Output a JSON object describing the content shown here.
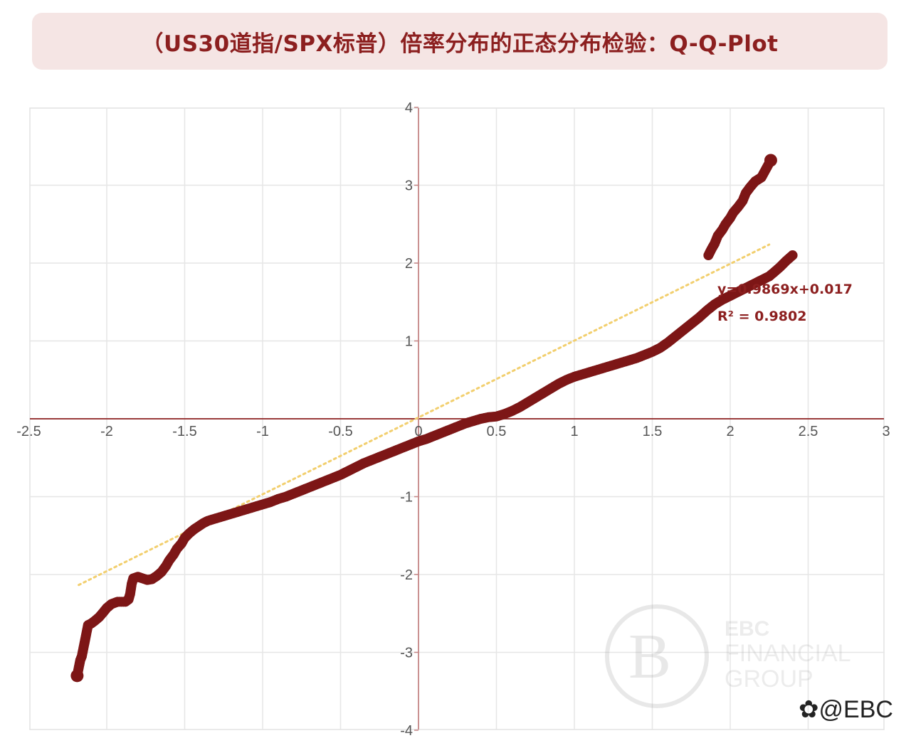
{
  "title": "（US30道指/SPX标普）倍率分布的正态分布检验：Q-Q-Plot",
  "chart_data": {
    "type": "scatter",
    "title": "（US30道指/SPX标普）倍率分布的正态分布检验：Q-Q-Plot",
    "xlim": [
      -2.5,
      3
    ],
    "ylim": [
      -4,
      4
    ],
    "x_ticks": [
      -2.5,
      -2,
      -1.5,
      -1,
      -0.5,
      0,
      0.5,
      1,
      1.5,
      2,
      2.5,
      3
    ],
    "x_tick_labels": [
      "-2.5",
      "-2",
      "-1.5",
      "-1",
      "-0.5",
      "0",
      "0.5",
      "1",
      "1.5",
      "2",
      "2.5",
      "3"
    ],
    "y_ticks": [
      -4,
      -3,
      -2,
      -1,
      1,
      2,
      3,
      4
    ],
    "y_tick_labels": [
      "-4",
      "-3",
      "-2",
      "-1",
      "1",
      "2",
      "3",
      "4"
    ],
    "grid": true,
    "point_color": "#7d1616",
    "trend_color": "#f2cf6e",
    "axis_color": "#8c1f1f",
    "series": [
      {
        "points": [
          [
            -2.19,
            -3.3
          ],
          [
            -2.17,
            -3.1
          ],
          [
            -2.16,
            -3.05
          ],
          [
            -2.15,
            -2.95
          ],
          [
            -2.14,
            -2.85
          ],
          [
            -2.13,
            -2.75
          ],
          [
            -2.12,
            -2.65
          ],
          [
            -2.1,
            -2.63
          ],
          [
            -2.08,
            -2.6
          ],
          [
            -2.05,
            -2.55
          ],
          [
            -2.02,
            -2.48
          ],
          [
            -2.0,
            -2.43
          ],
          [
            -1.97,
            -2.38
          ],
          [
            -1.93,
            -2.35
          ],
          [
            -1.88,
            -2.35
          ],
          [
            -1.86,
            -2.32
          ],
          [
            -1.85,
            -2.25
          ],
          [
            -1.84,
            -2.12
          ],
          [
            -1.83,
            -2.05
          ],
          [
            -1.8,
            -2.03
          ],
          [
            -1.77,
            -2.05
          ],
          [
            -1.74,
            -2.07
          ],
          [
            -1.71,
            -2.06
          ],
          [
            -1.68,
            -2.02
          ],
          [
            -1.65,
            -1.97
          ],
          [
            -1.62,
            -1.89
          ],
          [
            -1.6,
            -1.82
          ],
          [
            -1.57,
            -1.74
          ],
          [
            -1.55,
            -1.67
          ],
          [
            -1.52,
            -1.6
          ],
          [
            -1.5,
            -1.53
          ],
          [
            -1.47,
            -1.47
          ],
          [
            -1.44,
            -1.42
          ],
          [
            -1.41,
            -1.38
          ],
          [
            -1.38,
            -1.34
          ],
          [
            -1.35,
            -1.31
          ],
          [
            -1.3,
            -1.28
          ],
          [
            -1.25,
            -1.25
          ],
          [
            -1.2,
            -1.22
          ],
          [
            -1.15,
            -1.19
          ],
          [
            -1.1,
            -1.16
          ],
          [
            -1.05,
            -1.13
          ],
          [
            -1.0,
            -1.1
          ],
          [
            -0.95,
            -1.07
          ],
          [
            -0.9,
            -1.03
          ],
          [
            -0.85,
            -1.0
          ],
          [
            -0.8,
            -0.96
          ],
          [
            -0.75,
            -0.92
          ],
          [
            -0.7,
            -0.88
          ],
          [
            -0.65,
            -0.84
          ],
          [
            -0.6,
            -0.8
          ],
          [
            -0.55,
            -0.76
          ],
          [
            -0.5,
            -0.72
          ],
          [
            -0.45,
            -0.67
          ],
          [
            -0.4,
            -0.62
          ],
          [
            -0.35,
            -0.57
          ],
          [
            -0.3,
            -0.53
          ],
          [
            -0.25,
            -0.49
          ],
          [
            -0.2,
            -0.45
          ],
          [
            -0.15,
            -0.41
          ],
          [
            -0.1,
            -0.37
          ],
          [
            -0.05,
            -0.33
          ],
          [
            0.0,
            -0.29
          ],
          [
            0.05,
            -0.26
          ],
          [
            0.1,
            -0.22
          ],
          [
            0.15,
            -0.18
          ],
          [
            0.2,
            -0.14
          ],
          [
            0.25,
            -0.1
          ],
          [
            0.3,
            -0.06
          ],
          [
            0.35,
            -0.03
          ],
          [
            0.4,
            0.0
          ],
          [
            0.45,
            0.02
          ],
          [
            0.5,
            0.03
          ],
          [
            0.55,
            0.06
          ],
          [
            0.6,
            0.1
          ],
          [
            0.65,
            0.15
          ],
          [
            0.7,
            0.21
          ],
          [
            0.75,
            0.27
          ],
          [
            0.8,
            0.33
          ],
          [
            0.85,
            0.39
          ],
          [
            0.9,
            0.45
          ],
          [
            0.95,
            0.5
          ],
          [
            1.0,
            0.54
          ],
          [
            1.05,
            0.57
          ],
          [
            1.1,
            0.6
          ],
          [
            1.15,
            0.63
          ],
          [
            1.2,
            0.66
          ],
          [
            1.25,
            0.69
          ],
          [
            1.3,
            0.72
          ],
          [
            1.35,
            0.75
          ],
          [
            1.4,
            0.78
          ],
          [
            1.45,
            0.82
          ],
          [
            1.5,
            0.86
          ],
          [
            1.55,
            0.91
          ],
          [
            1.6,
            0.98
          ],
          [
            1.65,
            1.06
          ],
          [
            1.7,
            1.14
          ],
          [
            1.75,
            1.22
          ],
          [
            1.8,
            1.3
          ],
          [
            1.85,
            1.39
          ],
          [
            1.9,
            1.47
          ],
          [
            1.95,
            1.53
          ],
          [
            2.0,
            1.58
          ],
          [
            2.05,
            1.63
          ],
          [
            2.1,
            1.68
          ],
          [
            2.15,
            1.73
          ],
          [
            2.2,
            1.78
          ],
          [
            2.25,
            1.83
          ],
          [
            2.28,
            1.88
          ],
          [
            2.32,
            1.95
          ],
          [
            2.36,
            2.03
          ],
          [
            2.4,
            2.1
          ],
          [
            1.86,
            2.1
          ],
          [
            1.88,
            2.18
          ],
          [
            1.9,
            2.25
          ],
          [
            1.92,
            2.35
          ],
          [
            1.95,
            2.43
          ],
          [
            1.97,
            2.5
          ],
          [
            2.0,
            2.58
          ],
          [
            2.02,
            2.65
          ],
          [
            2.05,
            2.72
          ],
          [
            2.08,
            2.8
          ],
          [
            2.1,
            2.9
          ],
          [
            2.13,
            2.98
          ],
          [
            2.16,
            3.05
          ],
          [
            2.2,
            3.1
          ],
          [
            2.26,
            3.32
          ]
        ]
      }
    ],
    "trendline": {
      "slope": 0.9869,
      "intercept": 0.017,
      "x_range": [
        -2.18,
        2.25
      ],
      "equation_label": "y=0.9869x+0.017",
      "r2_label": "R² = 0.9802"
    }
  },
  "watermark": {
    "line1": "EBC",
    "line2": "FINANCIAL",
    "line3": "GROUP"
  },
  "footer": {
    "handle": "@EBC"
  }
}
